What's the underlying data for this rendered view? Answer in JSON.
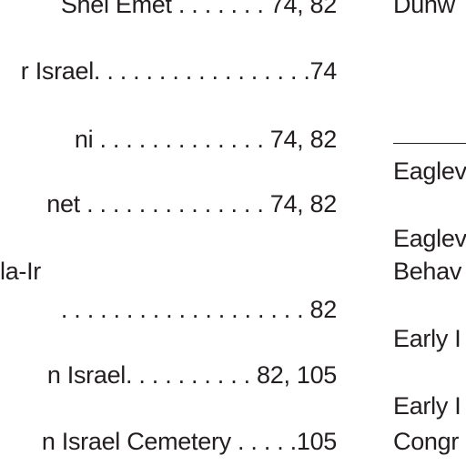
{
  "left_column": {
    "lines": [
      "Shel Emet . . . . . . . 74, 82",
      "r Israel. . . . . . . . . . . . . . . . .74",
      "ni . . . . . . . . . . . . . 74, 82",
      "net . . . . . . . . . . . . . . 74, 82",
      "la-Ir",
      ". . . . . . . . . . . . . . . . . . . 82",
      "n Israel. . . . . . . . . . 82, 105",
      "n Israel Cemetery . . . . .105"
    ]
  },
  "right_column": {
    "lines": [
      "Dunw",
      "Eaglev",
      "Eaglev",
      "Behav",
      "Early I",
      "Early I",
      "Congr"
    ]
  }
}
